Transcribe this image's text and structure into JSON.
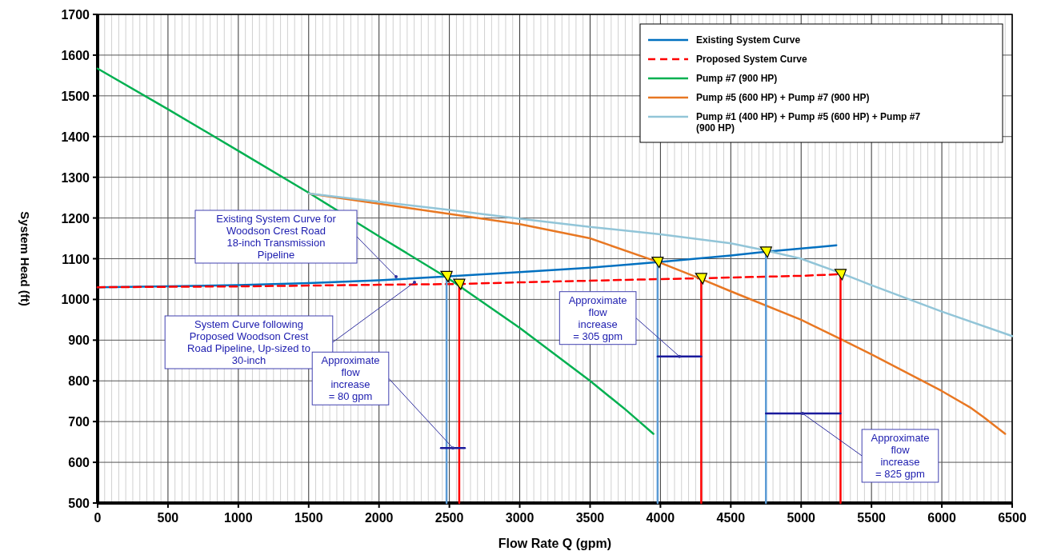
{
  "chart_data": {
    "type": "line",
    "xlabel": "Flow Rate Q (gpm)",
    "ylabel": "System Head (ft)",
    "xlim": [
      0,
      6500
    ],
    "xticks": [
      0,
      500,
      1000,
      1500,
      2000,
      2500,
      3000,
      3500,
      4000,
      4500,
      5000,
      5500,
      6000,
      6500
    ],
    "ylim": [
      500,
      1700
    ],
    "yticks": [
      500,
      600,
      700,
      800,
      900,
      1000,
      1100,
      1200,
      1300,
      1400,
      1500,
      1600,
      1700
    ],
    "grid": true,
    "legend": "top right",
    "marker": "none",
    "series": [
      {
        "name": "Existing System Curve",
        "color": "#0070c0",
        "x": [
          0,
          500,
          1000,
          1500,
          2000,
          2500,
          3000,
          3500,
          4000,
          4500,
          4750,
          5250
        ],
        "values": [
          1030,
          1032,
          1035,
          1040,
          1047,
          1057,
          1067,
          1078,
          1092,
          1108,
          1117,
          1133
        ]
      },
      {
        "name": "Proposed System Curve",
        "color": "#ff0000",
        "line_style": "dashed",
        "x": [
          0,
          1000,
          2000,
          2570,
          3000,
          4000,
          4290,
          5000,
          5280
        ],
        "values": [
          1030,
          1032,
          1036,
          1038,
          1042,
          1050,
          1052,
          1058,
          1062
        ]
      },
      {
        "name": "Pump #7 (900 HP)",
        "color": "#00b050",
        "x": [
          0,
          500,
          1000,
          1500,
          2000,
          2500,
          3000,
          3500,
          3750,
          3850,
          3950
        ],
        "values": [
          1567,
          1467,
          1365,
          1262,
          1155,
          1050,
          930,
          800,
          730,
          700,
          670
        ]
      },
      {
        "name": "Pump #5 (600 HP) + Pump #7 (900 HP)",
        "color": "#e87722",
        "x": [
          1500,
          2000,
          2500,
          3000,
          3500,
          4000,
          4290,
          4500,
          5000,
          5280,
          5500,
          6000,
          6200,
          6300,
          6450
        ],
        "values": [
          1260,
          1235,
          1210,
          1185,
          1150,
          1090,
          1050,
          1020,
          950,
          903,
          865,
          775,
          735,
          710,
          670
        ]
      },
      {
        "name": "Pump #1 (400 HP) +  Pump #5 (600 HP) + Pump #7 (900 HP)",
        "color": "#92c5d8",
        "x": [
          1500,
          2000,
          2500,
          3000,
          3500,
          4000,
          4500,
          4750,
          5000,
          5280,
          5500,
          6000,
          6500
        ],
        "values": [
          1260,
          1240,
          1220,
          1198,
          1178,
          1160,
          1138,
          1120,
          1100,
          1065,
          1035,
          970,
          910
        ]
      },
      {
        "color": "#5b9bd5",
        "x": [
          2480,
          2480
        ],
        "values": [
          1057,
          500
        ]
      },
      {
        "color": "#ff0000",
        "x": [
          2570,
          2570
        ],
        "values": [
          1038,
          500
        ]
      },
      {
        "color": "#5b9bd5",
        "x": [
          3980,
          3980
        ],
        "values": [
          1092,
          500
        ]
      },
      {
        "color": "#ff0000",
        "x": [
          4290,
          4290
        ],
        "values": [
          1052,
          500
        ]
      },
      {
        "color": "#5b9bd5",
        "x": [
          4750,
          4750
        ],
        "values": [
          1117,
          500
        ]
      },
      {
        "color": "#ff0000",
        "x": [
          5280,
          5280
        ],
        "values": [
          1062,
          500
        ]
      },
      {
        "color": "#1a1a9c",
        "x": [
          2440,
          2610
        ],
        "values": [
          635,
          635
        ]
      },
      {
        "color": "#1a1a9c",
        "x": [
          3980,
          4290
        ],
        "values": [
          860,
          860
        ]
      },
      {
        "color": "#1a1a9c",
        "x": [
          4750,
          5280
        ],
        "values": [
          720,
          720
        ]
      },
      {
        "type": "scatter",
        "marker": "triangle",
        "color": "#ffff00",
        "x": [
          2480,
          2570,
          3980,
          4290,
          4750,
          5280
        ],
        "values": [
          1057,
          1038,
          1092,
          1052,
          1117,
          1062
        ]
      }
    ],
    "annotations": [
      "Existing System Curve for\nWoodson Crest Road\n18-inch Transmission\nPipeline",
      "System Curve following\nProposed Woodson Crest\nRoad Pipeline, Up-sized to\n30-inch",
      {
        "text": "Approximate\nflow\nincrease\n= 80 gpm",
        "x": 2525,
        "y": 635
      },
      {
        "text": "Approximate\nflow\nincrease\n= 305 gpm",
        "x": 4135,
        "y": 860
      },
      {
        "text": "Approximate\nflow\nincrease\n= 825 gpm",
        "x": 5010,
        "y": 720
      }
    ]
  }
}
